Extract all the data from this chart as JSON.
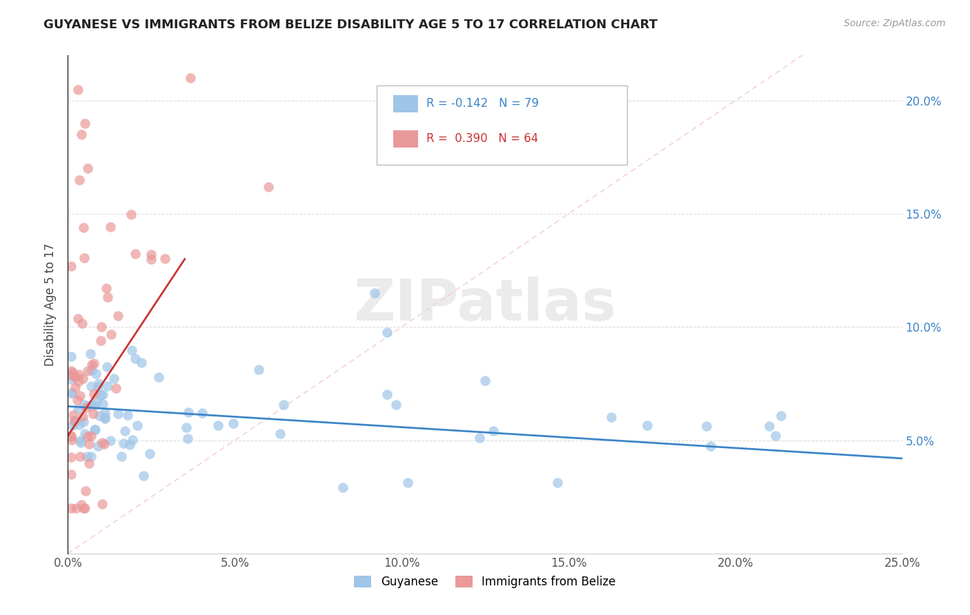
{
  "title": "GUYANESE VS IMMIGRANTS FROM BELIZE DISABILITY AGE 5 TO 17 CORRELATION CHART",
  "source": "Source: ZipAtlas.com",
  "ylabel": "Disability Age 5 to 17",
  "xlim": [
    0.0,
    25.0
  ],
  "ylim": [
    0.0,
    22.0
  ],
  "xticks": [
    0.0,
    5.0,
    10.0,
    15.0,
    20.0,
    25.0
  ],
  "yticks": [
    5.0,
    10.0,
    15.0,
    20.0
  ],
  "legend1_label": "R = -0.142   N = 79",
  "legend2_label": "R =  0.390   N = 64",
  "series1_color": "#9fc5e8",
  "series2_color": "#ea9999",
  "trendline1_color": "#3d85c8",
  "trendline2_color": "#cc3333",
  "diag_color": "#f4cccc",
  "background_color": "#ffffff",
  "watermark": "ZIPatlas",
  "series1_name": "Guyanese",
  "series2_name": "Immigrants from Belize",
  "trendline1_x0": 0.0,
  "trendline1_y0": 6.5,
  "trendline1_x1": 25.0,
  "trendline1_y1": 4.2,
  "trendline2_x0": 0.0,
  "trendline2_y0": 5.2,
  "trendline2_x1": 3.5,
  "trendline2_y1": 13.0
}
